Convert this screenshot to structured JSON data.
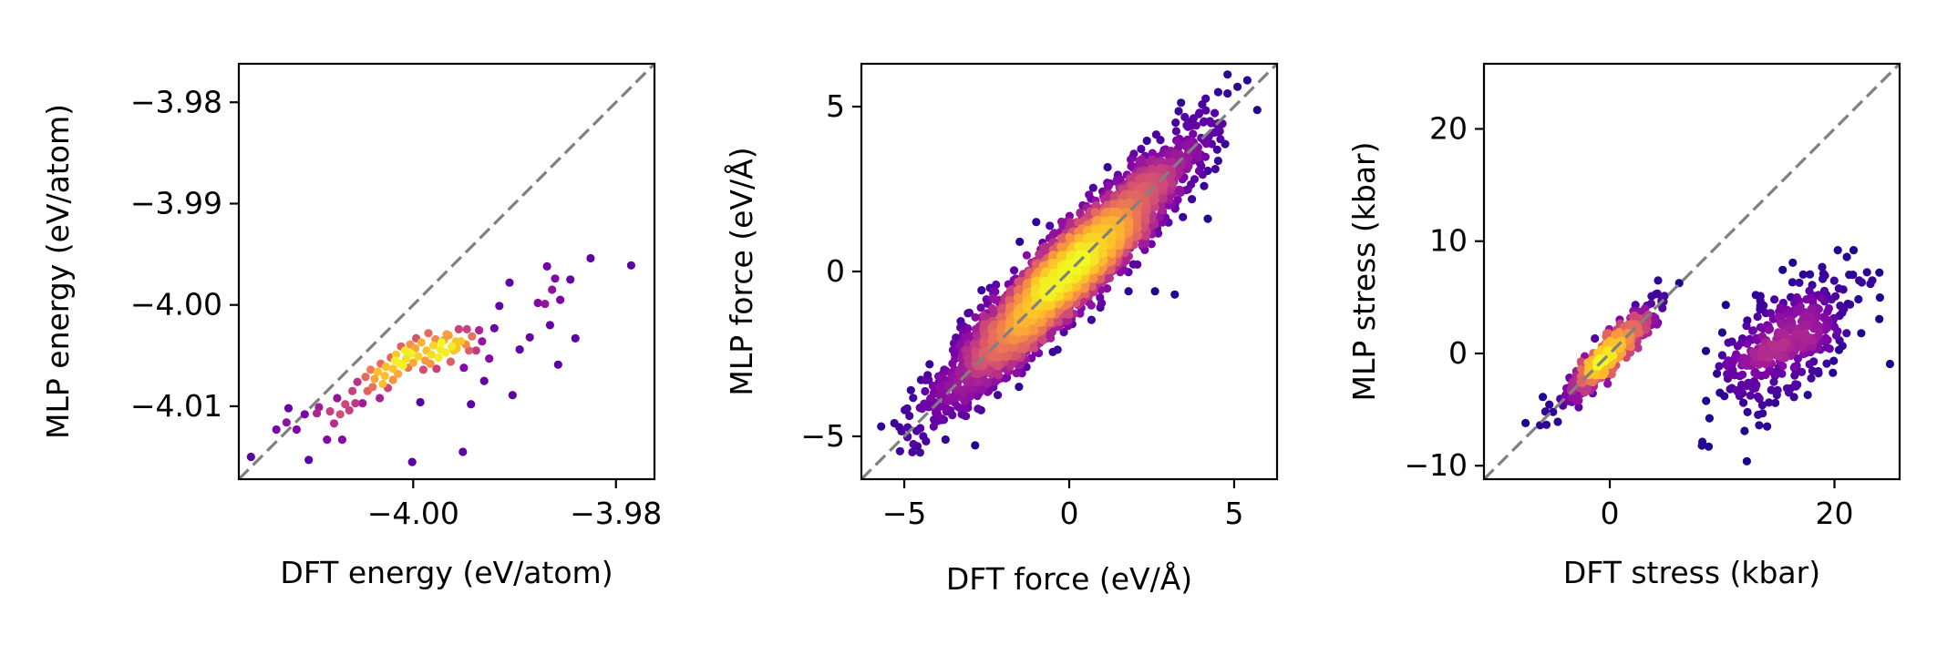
{
  "palette": {
    "colormap": "plasma",
    "reference_line": "#808080",
    "axes": "#000000",
    "background": "#ffffff"
  },
  "chart_data": [
    {
      "type": "scatter",
      "density_colored": true,
      "xlabel": "DFT energy (eV/atom)",
      "ylabel": "MLP energy (eV/atom)",
      "xlim": [
        -4.0172,
        -3.9762
      ],
      "ylim": [
        -4.0172,
        -3.9762
      ],
      "xticks": [
        -4.0,
        -3.98
      ],
      "xtick_labels": [
        "−4.00",
        "−3.98"
      ],
      "yticks": [
        -3.98,
        -3.99,
        -4.0,
        -4.01
      ],
      "ytick_labels": [
        "−3.98",
        "−3.99",
        "−4.00",
        "−4.01"
      ],
      "reference_line": "y = x",
      "points": [
        [
          -4.016,
          -4.015
        ],
        [
          -4.0135,
          -4.0123
        ],
        [
          -4.0125,
          -4.0116
        ],
        [
          -4.0123,
          -4.0102
        ],
        [
          -4.0115,
          -4.0123
        ],
        [
          -4.0107,
          -4.0108
        ],
        [
          -4.0103,
          -4.0153
        ],
        [
          -4.0095,
          -4.0107
        ],
        [
          -4.0093,
          -4.0101
        ],
        [
          -4.0085,
          -4.0133
        ],
        [
          -4.0082,
          -4.0105
        ],
        [
          -4.0078,
          -4.0117
        ],
        [
          -4.0075,
          -4.0092
        ],
        [
          -4.0072,
          -4.0108
        ],
        [
          -4.007,
          -4.0133
        ],
        [
          -4.0067,
          -4.0098
        ],
        [
          -4.0063,
          -4.0104
        ],
        [
          -4.006,
          -4.0085
        ],
        [
          -4.0057,
          -4.0097
        ],
        [
          -4.0055,
          -4.0076
        ],
        [
          -4.005,
          -4.0097
        ],
        [
          -4.0047,
          -4.0071
        ],
        [
          -4.0045,
          -4.0085
        ],
        [
          -4.0042,
          -4.0064
        ],
        [
          -4.004,
          -4.0081
        ],
        [
          -4.0038,
          -4.0073
        ],
        [
          -4.0035,
          -4.0066
        ],
        [
          -4.0033,
          -4.0092
        ],
        [
          -4.0032,
          -4.0058
        ],
        [
          -4.003,
          -4.0078
        ],
        [
          -4.0028,
          -4.007
        ],
        [
          -4.0027,
          -4.0061
        ],
        [
          -4.0025,
          -4.0082
        ],
        [
          -4.0022,
          -4.0052
        ],
        [
          -4.002,
          -4.0074
        ],
        [
          -4.002,
          -4.0063
        ],
        [
          -4.0018,
          -4.0055
        ],
        [
          -4.0017,
          -4.0049
        ],
        [
          -4.0015,
          -4.0068
        ],
        [
          -4.0013,
          -4.0058
        ],
        [
          -4.0012,
          -4.0041
        ],
        [
          -4.001,
          -4.006
        ],
        [
          -4.0008,
          -4.0045
        ],
        [
          -4.0007,
          -4.0053
        ],
        [
          -4.0005,
          -4.0062
        ],
        [
          -4.0003,
          -4.0039
        ],
        [
          -4.0002,
          -4.0048
        ],
        [
          -4.0001,
          -4.0155
        ],
        [
          -4.0,
          -4.0057
        ],
        [
          -3.9998,
          -4.0043
        ],
        [
          -3.9997,
          -4.0033
        ],
        [
          -3.9995,
          -4.0051
        ],
        [
          -3.9993,
          -4.0096
        ],
        [
          -3.9992,
          -4.0037
        ],
        [
          -3.999,
          -4.0064
        ],
        [
          -3.9988,
          -4.0055
        ],
        [
          -3.9987,
          -4.0045
        ],
        [
          -3.9985,
          -4.0028
        ],
        [
          -3.9983,
          -4.0058
        ],
        [
          -3.9982,
          -4.0049
        ],
        [
          -3.998,
          -4.004
        ],
        [
          -3.9978,
          -4.0034
        ],
        [
          -3.9977,
          -4.0063
        ],
        [
          -3.9975,
          -4.0052
        ],
        [
          -3.9973,
          -4.0044
        ],
        [
          -3.9972,
          -4.0037
        ],
        [
          -3.997,
          -4.0035
        ],
        [
          -3.9968,
          -4.0047
        ],
        [
          -3.9967,
          -4.0029
        ],
        [
          -3.9965,
          -4.003
        ],
        [
          -3.9963,
          -4.0056
        ],
        [
          -3.9962,
          -4.0041
        ],
        [
          -3.996,
          -4.0045
        ],
        [
          -3.9958,
          -4.0036
        ],
        [
          -3.9957,
          -4.0043
        ],
        [
          -3.9955,
          -4.0024
        ],
        [
          -3.9953,
          -4.0036
        ],
        [
          -3.9951,
          -4.0145
        ],
        [
          -3.995,
          -4.0062
        ],
        [
          -3.9948,
          -4.0039
        ],
        [
          -3.9947,
          -4.0024
        ],
        [
          -3.9945,
          -4.0045
        ],
        [
          -3.9943,
          -4.0098
        ],
        [
          -3.9942,
          -4.0031
        ],
        [
          -3.9938,
          -4.0045
        ],
        [
          -3.9935,
          -4.0025
        ],
        [
          -3.9932,
          -4.0036
        ],
        [
          -3.993,
          -4.0075
        ],
        [
          -3.9925,
          -4.0053
        ],
        [
          -3.992,
          -4.0023
        ],
        [
          -3.9915,
          -4.0001
        ],
        [
          -3.9905,
          -3.9978
        ],
        [
          -3.9902,
          -4.0089
        ],
        [
          -3.9895,
          -4.0044
        ],
        [
          -3.9885,
          -4.0032
        ],
        [
          -3.9877,
          -3.9998
        ],
        [
          -3.987,
          -3.9999
        ],
        [
          -3.9868,
          -3.9962
        ],
        [
          -3.9865,
          -4.002
        ],
        [
          -3.9863,
          -3.9985
        ],
        [
          -3.986,
          -3.9974
        ],
        [
          -3.9857,
          -4.0059
        ],
        [
          -3.9855,
          -3.9995
        ],
        [
          -3.9845,
          -3.9975
        ],
        [
          -3.984,
          -4.0033
        ],
        [
          -3.9825,
          -3.9954
        ],
        [
          -3.9785,
          -3.9961
        ]
      ]
    },
    {
      "type": "scatter",
      "density_colored": true,
      "xlabel": "DFT force (eV/Å)",
      "ylabel": "MLP force (eV/Å)",
      "xlim": [
        -6.3,
        6.3
      ],
      "ylim": [
        -6.3,
        6.3
      ],
      "xticks": [
        -5,
        0,
        5
      ],
      "xtick_labels": [
        "−5",
        "0",
        "5"
      ],
      "yticks": [
        5,
        0,
        -5
      ],
      "ytick_labels": [
        "5",
        "0",
        "−5"
      ],
      "reference_line": "y = x",
      "cloud": {
        "count": 4200,
        "slope": 0.95,
        "sigma_x": 1.75,
        "sigma_residual": 0.62,
        "x_range": [
          -5.2,
          4.8
        ]
      },
      "outliers": [
        [
          -5.7,
          -4.7
        ],
        [
          -5.3,
          -4.6
        ],
        [
          -4.9,
          -5.0
        ],
        [
          -4.6,
          -5.3
        ],
        [
          -4.8,
          -3.6
        ],
        [
          -3.3,
          -1.7
        ],
        [
          -2.4,
          -0.5
        ],
        [
          -1.5,
          0.9
        ],
        [
          -1.0,
          1.5
        ],
        [
          1.8,
          -0.6
        ],
        [
          2.6,
          -0.6
        ],
        [
          3.2,
          -0.7
        ],
        [
          3.6,
          3.6
        ],
        [
          4.0,
          3.2
        ],
        [
          4.3,
          4.5
        ],
        [
          4.8,
          5.4
        ],
        [
          5.1,
          5.6
        ],
        [
          5.4,
          5.8
        ],
        [
          5.7,
          4.9
        ],
        [
          4.2,
          1.6
        ],
        [
          3.8,
          2.8
        ],
        [
          -3.9,
          -4.1
        ]
      ]
    },
    {
      "type": "scatter",
      "density_colored": true,
      "xlabel": "DFT stress (kbar)",
      "ylabel": "MLP stress (kbar)",
      "xlim": [
        -11.2,
        25.8
      ],
      "ylim": [
        -11.2,
        25.8
      ],
      "xticks": [
        0,
        20
      ],
      "xtick_labels": [
        "0",
        "20"
      ],
      "yticks": [
        20,
        10,
        0,
        -10
      ],
      "ytick_labels": [
        "20",
        "10",
        "0",
        "−10"
      ],
      "reference_line": "y = x",
      "clusters": [
        {
          "center": [
            0.0,
            0.0
          ],
          "count": 420,
          "slope": 1.0,
          "sigma_x": 2.0,
          "sigma_residual": 0.85
        },
        {
          "center": [
            15.8,
            1.0
          ],
          "count": 380,
          "slope": 0.45,
          "sigma_x": 2.9,
          "sigma_residual": 2.3
        }
      ],
      "outliers": [
        [
          -7.5,
          -6.2
        ],
        [
          -6.2,
          -6.4
        ],
        [
          4.3,
          6.5
        ],
        [
          8.2,
          -8.2
        ],
        [
          8.8,
          -8.3
        ],
        [
          9.8,
          -3.5
        ],
        [
          10.2,
          -3.8
        ],
        [
          12.0,
          -6.9
        ],
        [
          12.2,
          -9.6
        ],
        [
          13.3,
          -6.4
        ],
        [
          20.3,
          9.2
        ],
        [
          21.1,
          8.6
        ],
        [
          21.7,
          9.2
        ],
        [
          22.2,
          6.5
        ],
        [
          24.0,
          7.2
        ],
        [
          23.2,
          6.2
        ],
        [
          13.0,
          5.2
        ],
        [
          18.9,
          7.7
        ],
        [
          11.3,
          -3.3
        ],
        [
          14.0,
          -6.5
        ]
      ]
    }
  ]
}
